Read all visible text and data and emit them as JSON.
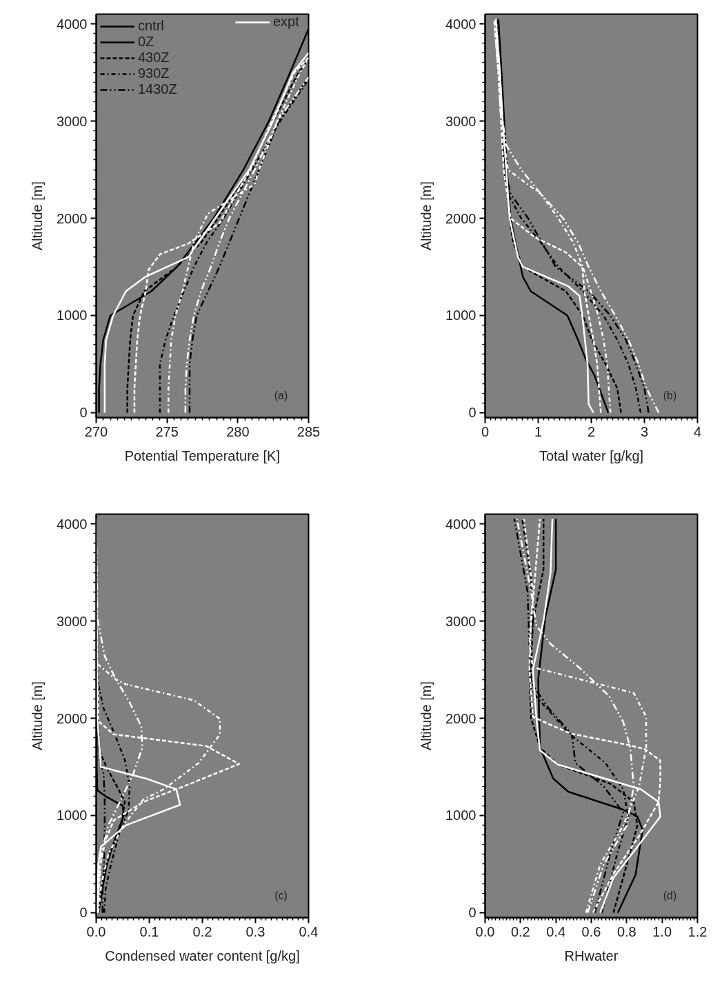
{
  "chart_data": [
    {
      "type": "line",
      "xlabel": "Potential Temperature [K]",
      "ylabel": "Altitude [m]",
      "xlim": [
        270,
        285
      ],
      "ylim": [
        -50,
        4100
      ],
      "xticks": [
        270,
        275,
        280,
        285
      ],
      "yticks": [
        0,
        1000,
        2000,
        3000,
        4000
      ],
      "legend": "top left",
      "legend_title": "cntrl",
      "annotations": [
        "(a)",
        "expt"
      ],
      "series": [
        {
          "name": "0Z",
          "color": "#000000",
          "line_style": "solid",
          "x": [
            270.2,
            270.2,
            270.3,
            270.5,
            271.0,
            273.9,
            275.7,
            277.0,
            278.3,
            280.4,
            282.2,
            283.7,
            285.0
          ],
          "values": [
            0,
            250,
            500,
            750,
            1000,
            1250,
            1500,
            1750,
            2000,
            2500,
            3000,
            3500,
            3950
          ]
        },
        {
          "name": "430Z",
          "color": "#000000",
          "line_style": "dashed",
          "x": [
            272.2,
            272.2,
            272.3,
            272.4,
            272.6,
            273.4,
            275.7,
            277.4,
            278.6,
            280.8,
            282.5,
            284.3,
            285.0
          ],
          "values": [
            0,
            250,
            500,
            750,
            1000,
            1250,
            1500,
            1750,
            2000,
            2500,
            3000,
            3500,
            3650
          ]
        },
        {
          "name": "930Z",
          "color": "#000000",
          "line_style": "dashdot",
          "x": [
            274.5,
            274.5,
            274.5,
            274.9,
            275.5,
            276.2,
            276.9,
            277.8,
            279.0,
            281.0,
            283.0,
            285.0
          ],
          "values": [
            0,
            250,
            500,
            750,
            1000,
            1250,
            1500,
            1750,
            2000,
            2500,
            3000,
            3430
          ]
        },
        {
          "name": "1430Z",
          "color": "#000000",
          "line_style": "dashdotdot",
          "x": [
            276.6,
            276.6,
            276.6,
            276.8,
            277.1,
            277.9,
            278.7,
            279.4,
            280.1,
            281.5,
            282.9,
            285.0
          ],
          "values": [
            0,
            250,
            500,
            750,
            1000,
            1250,
            1500,
            1750,
            2000,
            2500,
            3000,
            3450
          ]
        },
        {
          "color": "#ffffff",
          "line_style": "solid",
          "x": [
            270.6,
            270.6,
            270.6,
            270.7,
            271.2,
            272.1,
            273.5,
            276.5,
            278.4,
            280.8,
            282.5,
            283.9,
            285.0
          ],
          "values": [
            0,
            250,
            500,
            750,
            1000,
            1250,
            1400,
            1600,
            2000,
            2500,
            3000,
            3500,
            3700
          ]
        },
        {
          "color": "#ffffff",
          "line_style": "dashed",
          "x": [
            272.7,
            272.7,
            272.8,
            272.9,
            273.1,
            273.5,
            273.7,
            274.5,
            276.5,
            278.7,
            280.9,
            282.4,
            284.0,
            285.0
          ],
          "values": [
            0,
            250,
            500,
            750,
            1000,
            1250,
            1470,
            1630,
            1740,
            1950,
            2500,
            3000,
            3500,
            3650
          ]
        },
        {
          "color": "#ffffff",
          "line_style": "dashdot",
          "x": [
            275.1,
            275.1,
            275.2,
            275.3,
            275.6,
            276.1,
            276.5,
            276.9,
            277.4,
            277.9,
            281.2,
            281.5,
            282.8,
            284.4,
            285.0
          ],
          "values": [
            0,
            250,
            500,
            750,
            1000,
            1250,
            1500,
            1750,
            1900,
            2050,
            2350,
            2500,
            3000,
            3500,
            3650
          ]
        },
        {
          "color": "#ffffff",
          "line_style": "dashdotdot",
          "x": [
            276.3,
            276.3,
            276.4,
            276.6,
            276.9,
            277.4,
            278.1,
            278.7,
            279.4,
            281.2,
            282.8,
            285.0
          ],
          "values": [
            0,
            250,
            500,
            750,
            1000,
            1250,
            1500,
            1750,
            2000,
            2500,
            3000,
            3450
          ]
        }
      ]
    },
    {
      "type": "line",
      "xlabel": "Total water [g/kg]",
      "ylabel": "Altitude [m]",
      "xlim": [
        0,
        4
      ],
      "ylim": [
        -50,
        4100
      ],
      "xticks": [
        0,
        1,
        2,
        3,
        4
      ],
      "yticks": [
        0,
        1000,
        2000,
        3000,
        4000
      ],
      "annotations": [
        "(b)"
      ],
      "series": [
        {
          "color": "#000000",
          "line_style": "solid",
          "x": [
            2.32,
            2.06,
            1.9,
            1.75,
            1.55,
            0.86,
            0.71,
            0.57,
            0.48,
            0.41,
            0.36,
            0.31,
            0.25
          ],
          "values": [
            0,
            385,
            545,
            750,
            1000,
            1250,
            1400,
            1750,
            2000,
            2500,
            3000,
            3500,
            4050
          ]
        },
        {
          "color": "#000000",
          "line_style": "dashed",
          "x": [
            2.56,
            2.49,
            2.27,
            2.01,
            1.84,
            1.52,
            0.71,
            0.53,
            0.46,
            0.38,
            0.33,
            0.27,
            0.2
          ],
          "values": [
            0,
            250,
            500,
            750,
            1000,
            1250,
            1500,
            1750,
            2000,
            2500,
            3000,
            3500,
            4050
          ]
        },
        {
          "color": "#000000",
          "line_style": "dashdot",
          "x": [
            2.93,
            2.84,
            2.7,
            2.49,
            2.23,
            1.84,
            1.38,
            1.05,
            0.68,
            0.43,
            0.36,
            0.32,
            0.27,
            0.22
          ],
          "values": [
            0,
            250,
            500,
            750,
            1000,
            1250,
            1500,
            1750,
            2000,
            2250,
            2500,
            3000,
            3500,
            4050
          ]
        },
        {
          "color": "#000000",
          "line_style": "dashdotdot",
          "x": [
            3.08,
            3.0,
            2.84,
            2.65,
            2.36,
            1.95,
            1.33,
            1.07,
            0.81,
            0.48,
            0.38,
            0.32,
            0.27,
            0.2
          ],
          "values": [
            0,
            250,
            500,
            750,
            1000,
            1250,
            1500,
            1750,
            2000,
            2250,
            2500,
            3000,
            3500,
            4050
          ]
        },
        {
          "color": "#ffffff",
          "line_style": "solid",
          "x": [
            2.04,
            1.95,
            1.93,
            1.83,
            1.78,
            1.57,
            0.71,
            0.62,
            0.46,
            0.4,
            0.33,
            0.28,
            0.2
          ],
          "values": [
            0,
            90,
            500,
            1000,
            1200,
            1300,
            1500,
            1600,
            2000,
            2500,
            3000,
            3500,
            4050
          ]
        },
        {
          "color": "#ffffff",
          "line_style": "dashed",
          "x": [
            2.18,
            2.11,
            2.04,
            1.95,
            1.87,
            1.83,
            1.52,
            0.95,
            0.48,
            0.35,
            0.3,
            0.25,
            0.17
          ],
          "values": [
            0,
            500,
            750,
            1000,
            1250,
            1500,
            1650,
            1800,
            2000,
            2500,
            3000,
            3500,
            4050
          ]
        },
        {
          "color": "#ffffff",
          "line_style": "dashdot",
          "x": [
            2.36,
            2.3,
            2.23,
            2.13,
            1.99,
            1.84,
            1.66,
            1.38,
            1.05,
            0.43,
            0.3,
            0.25,
            0.17
          ],
          "values": [
            0,
            500,
            750,
            1000,
            1250,
            1500,
            1750,
            2000,
            2250,
            2500,
            3000,
            3500,
            4050
          ]
        },
        {
          "color": "#ffffff",
          "line_style": "dashdotdot",
          "x": [
            3.27,
            3.04,
            2.89,
            2.7,
            2.45,
            2.18,
            1.95,
            1.75,
            1.47,
            1.05,
            0.68,
            0.4,
            0.33,
            0.27,
            0.2
          ],
          "values": [
            0,
            250,
            500,
            750,
            1000,
            1250,
            1500,
            1750,
            2000,
            2250,
            2500,
            2750,
            3000,
            3500,
            4050
          ]
        }
      ]
    },
    {
      "type": "line",
      "xlabel": "Condensed water content [g/kg]",
      "ylabel": "Altitude [m]",
      "xlim": [
        0,
        0.4
      ],
      "ylim": [
        -50,
        4100
      ],
      "xticks": [
        {
          "value": 0,
          "label": "0.0"
        },
        {
          "value": 0.1,
          "label": "0.1"
        },
        {
          "value": 0.2,
          "label": "0.2"
        },
        {
          "value": 0.3,
          "label": "0.3"
        },
        {
          "value": 0.4,
          "label": "0.4"
        }
      ],
      "yticks": [
        0,
        1000,
        2000,
        3000,
        4000
      ],
      "annotations": [
        "(c)"
      ],
      "series": [
        {
          "color": "#000000",
          "line_style": "solid",
          "x": [
            0.004,
            0.012,
            0.02,
            0.035,
            0.052,
            0.05,
            0.017,
            0.002,
            0.001,
            0.001,
            0,
            0
          ],
          "values": [
            0,
            250,
            500,
            750,
            1000,
            1100,
            1200,
            1260,
            1500,
            2000,
            3000,
            4050
          ]
        },
        {
          "color": "#000000",
          "line_style": "dashed",
          "x": [
            0.005,
            0.01,
            0.02,
            0.035,
            0.047,
            0.054,
            0.042,
            0.02,
            0.007,
            0.003,
            0.001,
            0
          ],
          "values": [
            0,
            250,
            500,
            750,
            900,
            1140,
            1270,
            1490,
            1650,
            2000,
            3000,
            4050
          ]
        },
        {
          "color": "#000000",
          "line_style": "dashdot",
          "x": [
            0.015,
            0.018,
            0.028,
            0.042,
            0.061,
            0.063,
            0.054,
            0.035,
            0.014,
            0.002,
            0.001,
            0
          ],
          "values": [
            0,
            250,
            500,
            790,
            1060,
            1300,
            1570,
            1835,
            2100,
            2400,
            3000,
            4050
          ]
        },
        {
          "color": "#000000",
          "line_style": "dashdotdot",
          "x": [
            0.012,
            0.012,
            0.015,
            0.016,
            0.016,
            0.014,
            0.007,
            0.002,
            0.001,
            0
          ],
          "values": [
            0,
            250,
            500,
            900,
            1165,
            1430,
            1570,
            2000,
            3000,
            4050
          ]
        },
        {
          "color": "#ffffff",
          "line_style": "solid",
          "x": [
            0.002,
            0.004,
            0.009,
            0.056,
            0.158,
            0.151,
            0.094,
            0.009,
            0.002,
            0.001,
            0
          ],
          "values": [
            0,
            500,
            680,
            900,
            1110,
            1270,
            1380,
            1500,
            2000,
            3000,
            4050
          ]
        },
        {
          "color": "#ffffff",
          "line_style": "dashed",
          "x": [
            0.002,
            0.008,
            0.018,
            0.033,
            0.089,
            0.165,
            0.269,
            0.207,
            0.033,
            0.004,
            0.002,
            0.001,
            0
          ],
          "values": [
            0,
            500,
            750,
            950,
            1140,
            1300,
            1530,
            1715,
            1835,
            1970,
            2500,
            3000,
            4050
          ]
        },
        {
          "color": "#ffffff",
          "line_style": "dashdot",
          "x": [
            0.004,
            0.01,
            0.023,
            0.051,
            0.089,
            0.127,
            0.193,
            0.233,
            0.233,
            0.184,
            0.056,
            0.037,
            0.002,
            0.001,
            0
          ],
          "values": [
            0,
            300,
            600,
            900,
            1165,
            1270,
            1540,
            1835,
            1995,
            2185,
            2350,
            2400,
            2560,
            3000,
            4050
          ]
        },
        {
          "color": "#ffffff",
          "line_style": "dashdotdot",
          "x": [
            0.002,
            0.005,
            0.009,
            0.023,
            0.047,
            0.07,
            0.087,
            0.085,
            0.061,
            0.037,
            0.016,
            0.002,
            0.002,
            0
          ],
          "values": [
            0,
            300,
            600,
            900,
            1165,
            1430,
            1700,
            1915,
            2185,
            2400,
            2640,
            3040,
            3300,
            4050
          ]
        }
      ]
    },
    {
      "type": "line",
      "xlabel": "RHwater",
      "ylabel": "Altitude [m]",
      "xlim": [
        0,
        1.2
      ],
      "ylim": [
        -50,
        4100
      ],
      "xticks": [
        {
          "value": 0,
          "label": "0.0"
        },
        {
          "value": 0.2,
          "label": "0.2"
        },
        {
          "value": 0.4,
          "label": "0.4"
        },
        {
          "value": 0.6,
          "label": "0.6"
        },
        {
          "value": 0.8,
          "label": "0.8"
        },
        {
          "value": 1.0,
          "label": "1.0"
        },
        {
          "value": 1.2,
          "label": "1.2"
        }
      ],
      "yticks": [
        0,
        1000,
        2000,
        3000,
        4000
      ],
      "annotations": [
        "(d)"
      ],
      "series": [
        {
          "color": "#000000",
          "line_style": "solid",
          "x": [
            0.75,
            0.85,
            0.89,
            0.86,
            0.78,
            0.47,
            0.385,
            0.31,
            0.3,
            0.34,
            0.4,
            0.4
          ],
          "values": [
            0,
            390,
            855,
            990,
            1060,
            1245,
            1380,
            1700,
            2400,
            3040,
            3530,
            4050
          ]
        },
        {
          "color": "#000000",
          "line_style": "dashed",
          "x": [
            0.725,
            0.78,
            0.86,
            0.84,
            0.71,
            0.41,
            0.31,
            0.26,
            0.25,
            0.27,
            0.33,
            0.33
          ],
          "values": [
            0,
            360,
            895,
            1140,
            1325,
            1525,
            1700,
            2000,
            2500,
            3000,
            3530,
            4050
          ]
        },
        {
          "color": "#000000",
          "line_style": "dashdot",
          "x": [
            0.66,
            0.75,
            0.81,
            0.78,
            0.68,
            0.48,
            0.31,
            0.26,
            0.26,
            0.27,
            0.26,
            0.21
          ],
          "values": [
            0,
            630,
            990,
            1270,
            1540,
            1835,
            2180,
            2285,
            2500,
            3000,
            3430,
            4050
          ]
        },
        {
          "color": "#000000",
          "line_style": "dashdotdot",
          "x": [
            0.62,
            0.71,
            0.78,
            0.67,
            0.51,
            0.49,
            0.36,
            0.26,
            0.25,
            0.24,
            0.165
          ],
          "values": [
            0,
            630,
            1030,
            1300,
            1540,
            1835,
            2100,
            2365,
            2765,
            3300,
            4050
          ]
        },
        {
          "color": "#ffffff",
          "line_style": "solid",
          "x": [
            0.65,
            0.725,
            0.84,
            0.99,
            0.98,
            0.88,
            0.41,
            0.31,
            0.29,
            0.27,
            0.33,
            0.37,
            0.38
          ],
          "values": [
            0,
            360,
            630,
            990,
            1140,
            1270,
            1525,
            1670,
            2000,
            2500,
            3000,
            3500,
            4050
          ]
        },
        {
          "color": "#ffffff",
          "line_style": "dashed",
          "x": [
            0.61,
            0.725,
            0.87,
            0.98,
            0.99,
            0.99,
            0.9,
            0.81,
            0.48,
            0.33,
            0.27,
            0.25,
            0.26,
            0.31
          ],
          "values": [
            0,
            400,
            790,
            1140,
            1350,
            1565,
            1685,
            1725,
            1845,
            1965,
            2015,
            2500,
            3000,
            4050
          ]
        },
        {
          "color": "#ffffff",
          "line_style": "dashdot",
          "x": [
            0.57,
            0.65,
            0.78,
            0.87,
            0.91,
            0.91,
            0.84,
            0.27,
            0.25,
            0.27,
            0.22
          ],
          "values": [
            0,
            495,
            895,
            1300,
            1700,
            2015,
            2260,
            2525,
            2765,
            3300,
            4050
          ]
        },
        {
          "color": "#ffffff",
          "line_style": "dashdotdot",
          "x": [
            0.58,
            0.67,
            0.8,
            0.84,
            0.82,
            0.78,
            0.7,
            0.53,
            0.37,
            0.29,
            0.26,
            0.18
          ],
          "values": [
            0,
            495,
            895,
            1300,
            1700,
            1965,
            2230,
            2525,
            2765,
            2950,
            3300,
            4050
          ]
        }
      ]
    }
  ]
}
